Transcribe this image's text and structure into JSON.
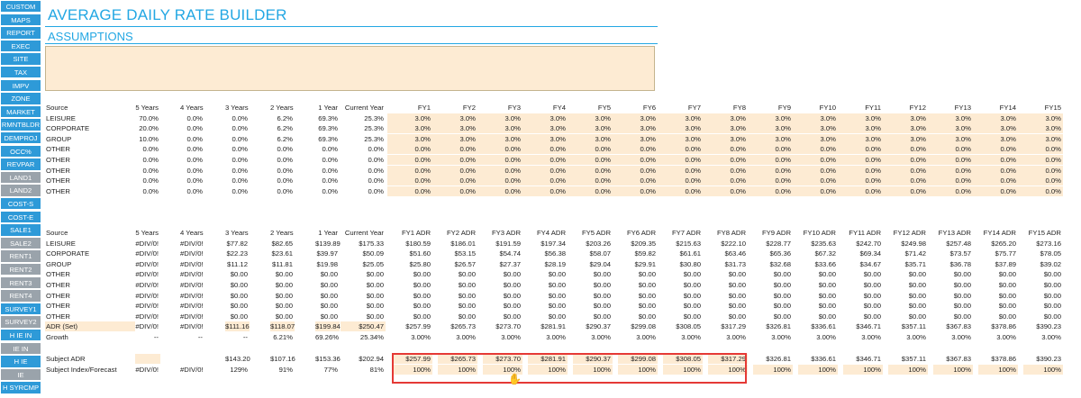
{
  "sidebar": {
    "items": [
      {
        "label": "CUSTOM",
        "style": "blue"
      },
      {
        "label": "MAPS",
        "style": "blue"
      },
      {
        "label": "REPORT",
        "style": "blue"
      },
      {
        "label": "EXEC",
        "style": "blue"
      },
      {
        "label": "SITE",
        "style": "blue"
      },
      {
        "label": "TAX",
        "style": "blue"
      },
      {
        "label": "IMPV",
        "style": "blue"
      },
      {
        "label": "ZONE",
        "style": "blue"
      },
      {
        "label": "MARKET",
        "style": "blue"
      },
      {
        "label": "RMNTBLDR",
        "style": "blue"
      },
      {
        "label": "DEMPROJ",
        "style": "blue"
      },
      {
        "label": "OCC%",
        "style": "blue"
      },
      {
        "label": "REVPAR",
        "style": "blue"
      },
      {
        "label": "LAND1",
        "style": "gray"
      },
      {
        "label": "LAND2",
        "style": "gray"
      },
      {
        "label": "COST-S",
        "style": "blue"
      },
      {
        "label": "COST-E",
        "style": "blue"
      },
      {
        "label": "SALE1",
        "style": "blue"
      },
      {
        "label": "SALE2",
        "style": "gray"
      },
      {
        "label": "RENT1",
        "style": "gray"
      },
      {
        "label": "RENT2",
        "style": "gray"
      },
      {
        "label": "RENT3",
        "style": "gray"
      },
      {
        "label": "RENT4",
        "style": "gray"
      },
      {
        "label": "SURVEY1",
        "style": "blue"
      },
      {
        "label": "SURVEY2",
        "style": "gray"
      },
      {
        "label": "H IE IN",
        "style": "blue"
      },
      {
        "label": "IE IN",
        "style": "gray"
      },
      {
        "label": "H IE",
        "style": "blue"
      },
      {
        "label": "IE",
        "style": "gray"
      },
      {
        "label": "H SYRCMP",
        "style": "blue"
      }
    ]
  },
  "page": {
    "title": "AVERAGE DAILY RATE BUILDER",
    "subtitle": "ASSUMPTIONS"
  },
  "growth_table": {
    "headers": [
      "Source",
      "5 Years",
      "4 Years",
      "3 Years",
      "2 Years",
      "1 Year",
      "Current Year",
      "FY1",
      "FY2",
      "FY3",
      "FY4",
      "FY5",
      "FY6",
      "FY7",
      "FY8",
      "FY9",
      "FY10",
      "FY11",
      "FY12",
      "FY13",
      "FY14",
      "FY15"
    ],
    "rows": [
      [
        "LEISURE",
        "70.0%",
        "0.0%",
        "0.0%",
        "6.2%",
        "69.3%",
        "25.3%",
        "3.0%",
        "3.0%",
        "3.0%",
        "3.0%",
        "3.0%",
        "3.0%",
        "3.0%",
        "3.0%",
        "3.0%",
        "3.0%",
        "3.0%",
        "3.0%",
        "3.0%",
        "3.0%",
        "3.0%"
      ],
      [
        "CORPORATE",
        "20.0%",
        "0.0%",
        "0.0%",
        "6.2%",
        "69.3%",
        "25.3%",
        "3.0%",
        "3.0%",
        "3.0%",
        "3.0%",
        "3.0%",
        "3.0%",
        "3.0%",
        "3.0%",
        "3.0%",
        "3.0%",
        "3.0%",
        "3.0%",
        "3.0%",
        "3.0%",
        "3.0%"
      ],
      [
        "GROUP",
        "10.0%",
        "0.0%",
        "0.0%",
        "6.2%",
        "69.3%",
        "25.3%",
        "3.0%",
        "3.0%",
        "3.0%",
        "3.0%",
        "3.0%",
        "3.0%",
        "3.0%",
        "3.0%",
        "3.0%",
        "3.0%",
        "3.0%",
        "3.0%",
        "3.0%",
        "3.0%",
        "3.0%"
      ],
      [
        "OTHER",
        "0.0%",
        "0.0%",
        "0.0%",
        "0.0%",
        "0.0%",
        "0.0%",
        "0.0%",
        "0.0%",
        "0.0%",
        "0.0%",
        "0.0%",
        "0.0%",
        "0.0%",
        "0.0%",
        "0.0%",
        "0.0%",
        "0.0%",
        "0.0%",
        "0.0%",
        "0.0%",
        "0.0%"
      ],
      [
        "OTHER",
        "0.0%",
        "0.0%",
        "0.0%",
        "0.0%",
        "0.0%",
        "0.0%",
        "0.0%",
        "0.0%",
        "0.0%",
        "0.0%",
        "0.0%",
        "0.0%",
        "0.0%",
        "0.0%",
        "0.0%",
        "0.0%",
        "0.0%",
        "0.0%",
        "0.0%",
        "0.0%",
        "0.0%"
      ],
      [
        "OTHER",
        "0.0%",
        "0.0%",
        "0.0%",
        "0.0%",
        "0.0%",
        "0.0%",
        "0.0%",
        "0.0%",
        "0.0%",
        "0.0%",
        "0.0%",
        "0.0%",
        "0.0%",
        "0.0%",
        "0.0%",
        "0.0%",
        "0.0%",
        "0.0%",
        "0.0%",
        "0.0%",
        "0.0%"
      ],
      [
        "OTHER",
        "0.0%",
        "0.0%",
        "0.0%",
        "0.0%",
        "0.0%",
        "0.0%",
        "0.0%",
        "0.0%",
        "0.0%",
        "0.0%",
        "0.0%",
        "0.0%",
        "0.0%",
        "0.0%",
        "0.0%",
        "0.0%",
        "0.0%",
        "0.0%",
        "0.0%",
        "0.0%",
        "0.0%"
      ],
      [
        "OTHER",
        "0.0%",
        "0.0%",
        "0.0%",
        "0.0%",
        "0.0%",
        "0.0%",
        "0.0%",
        "0.0%",
        "0.0%",
        "0.0%",
        "0.0%",
        "0.0%",
        "0.0%",
        "0.0%",
        "0.0%",
        "0.0%",
        "0.0%",
        "0.0%",
        "0.0%",
        "0.0%",
        "0.0%"
      ]
    ]
  },
  "adr_table": {
    "headers": [
      "Source",
      "5 Years",
      "4 Years",
      "3 Years",
      "2 Years",
      "1 Year",
      "Current Year",
      "FY1 ADR",
      "FY2 ADR",
      "FY3 ADR",
      "FY4 ADR",
      "FY5 ADR",
      "FY6 ADR",
      "FY7 ADR",
      "FY8 ADR",
      "FY9 ADR",
      "FY10 ADR",
      "FY11 ADR",
      "FY12 ADR",
      "FY13 ADR",
      "FY14 ADR",
      "FY15 ADR"
    ],
    "rows": [
      [
        "LEISURE",
        "#DIV/0!",
        "#DIV/0!",
        "$77.82",
        "$82.65",
        "$139.89",
        "$175.33",
        "$180.59",
        "$186.01",
        "$191.59",
        "$197.34",
        "$203.26",
        "$209.35",
        "$215.63",
        "$222.10",
        "$228.77",
        "$235.63",
        "$242.70",
        "$249.98",
        "$257.48",
        "$265.20",
        "$273.16"
      ],
      [
        "CORPORATE",
        "#DIV/0!",
        "#DIV/0!",
        "$22.23",
        "$23.61",
        "$39.97",
        "$50.09",
        "$51.60",
        "$53.15",
        "$54.74",
        "$56.38",
        "$58.07",
        "$59.82",
        "$61.61",
        "$63.46",
        "$65.36",
        "$67.32",
        "$69.34",
        "$71.42",
        "$73.57",
        "$75.77",
        "$78.05"
      ],
      [
        "GROUP",
        "#DIV/0!",
        "#DIV/0!",
        "$11.12",
        "$11.81",
        "$19.98",
        "$25.05",
        "$25.80",
        "$26.57",
        "$27.37",
        "$28.19",
        "$29.04",
        "$29.91",
        "$30.80",
        "$31.73",
        "$32.68",
        "$33.66",
        "$34.67",
        "$35.71",
        "$36.78",
        "$37.89",
        "$39.02"
      ],
      [
        "OTHER",
        "#DIV/0!",
        "#DIV/0!",
        "$0.00",
        "$0.00",
        "$0.00",
        "$0.00",
        "$0.00",
        "$0.00",
        "$0.00",
        "$0.00",
        "$0.00",
        "$0.00",
        "$0.00",
        "$0.00",
        "$0.00",
        "$0.00",
        "$0.00",
        "$0.00",
        "$0.00",
        "$0.00",
        "$0.00"
      ],
      [
        "OTHER",
        "#DIV/0!",
        "#DIV/0!",
        "$0.00",
        "$0.00",
        "$0.00",
        "$0.00",
        "$0.00",
        "$0.00",
        "$0.00",
        "$0.00",
        "$0.00",
        "$0.00",
        "$0.00",
        "$0.00",
        "$0.00",
        "$0.00",
        "$0.00",
        "$0.00",
        "$0.00",
        "$0.00",
        "$0.00"
      ],
      [
        "OTHER",
        "#DIV/0!",
        "#DIV/0!",
        "$0.00",
        "$0.00",
        "$0.00",
        "$0.00",
        "$0.00",
        "$0.00",
        "$0.00",
        "$0.00",
        "$0.00",
        "$0.00",
        "$0.00",
        "$0.00",
        "$0.00",
        "$0.00",
        "$0.00",
        "$0.00",
        "$0.00",
        "$0.00",
        "$0.00"
      ],
      [
        "OTHER",
        "#DIV/0!",
        "#DIV/0!",
        "$0.00",
        "$0.00",
        "$0.00",
        "$0.00",
        "$0.00",
        "$0.00",
        "$0.00",
        "$0.00",
        "$0.00",
        "$0.00",
        "$0.00",
        "$0.00",
        "$0.00",
        "$0.00",
        "$0.00",
        "$0.00",
        "$0.00",
        "$0.00",
        "$0.00"
      ],
      [
        "OTHER",
        "#DIV/0!",
        "#DIV/0!",
        "$0.00",
        "$0.00",
        "$0.00",
        "$0.00",
        "$0.00",
        "$0.00",
        "$0.00",
        "$0.00",
        "$0.00",
        "$0.00",
        "$0.00",
        "$0.00",
        "$0.00",
        "$0.00",
        "$0.00",
        "$0.00",
        "$0.00",
        "$0.00",
        "$0.00"
      ]
    ],
    "total_row": [
      "ADR (Set)",
      "#DIV/0!",
      "#DIV/0!",
      "$111.16",
      "$118.07",
      "$199.84",
      "$250.47",
      "$257.99",
      "$265.73",
      "$273.70",
      "$281.91",
      "$290.37",
      "$299.08",
      "$308.05",
      "$317.29",
      "$326.81",
      "$336.61",
      "$346.71",
      "$357.11",
      "$367.83",
      "$378.86",
      "$390.23"
    ],
    "growth_row": [
      "Growth",
      "--",
      "--",
      "--",
      "6.21%",
      "69.26%",
      "25.34%",
      "3.00%",
      "3.00%",
      "3.00%",
      "3.00%",
      "3.00%",
      "3.00%",
      "3.00%",
      "3.00%",
      "3.00%",
      "3.00%",
      "3.00%",
      "3.00%",
      "3.00%",
      "3.00%",
      "3.00%"
    ]
  },
  "subject_table": {
    "rows": [
      [
        "Subject ADR",
        "",
        "",
        "$143.20",
        "$107.16",
        "$153.36",
        "$202.94",
        "$257.99",
        "$265.73",
        "$273.70",
        "$281.91",
        "$290.37",
        "$299.08",
        "$308.05",
        "$317.29",
        "$326.81",
        "$336.61",
        "$346.71",
        "$357.11",
        "$367.83",
        "$378.86",
        "$390.23"
      ],
      [
        "Subject Index/Forecast",
        "#DIV/0!",
        "#DIV/0!",
        "129%",
        "91%",
        "77%",
        "81%",
        "100%",
        "100%",
        "100%",
        "100%",
        "100%",
        "100%",
        "100%",
        "100%",
        "100%",
        "100%",
        "100%",
        "100%",
        "100%",
        "100%",
        "100%"
      ]
    ]
  },
  "colors": {
    "accent": "#23a7e3",
    "sidebar_blue": "#2e9ad8",
    "sidebar_gray": "#9aa3ab",
    "input_fill": "#fdebd3",
    "highlight_box": "#e53935"
  }
}
